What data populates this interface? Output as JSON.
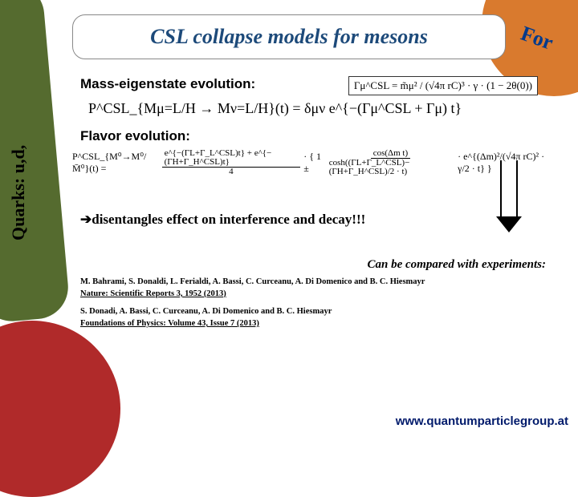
{
  "background": {
    "left_band_color": "#556b2f",
    "left_band_text": "Quarks: u,d,",
    "topright_color": "#d97a2e",
    "topright_text": "For",
    "bottomleft_color": "#b02a2a"
  },
  "title": {
    "text": "CSL collapse models for mesons",
    "color": "#1d4a7a",
    "fontsize": 26
  },
  "sections": {
    "mass_label": "Mass-eigenstate evolution:",
    "flavor_label": "Flavor evolution:",
    "gamma_eq": "Γμ^CSL = m̃μ² / (√4π rC)³ · γ · (1 − 2θ(0))",
    "mass_eq": "P^CSL_{Mμ=L/H → Mν=L/H}(t)  =  δμν  e^{−(Γμ^CSL + Γμ) t}",
    "flavor_eq_left": "P^CSL_{M⁰→M⁰/ M̄⁰}(t) =",
    "flavor_frac_num": "e^{−(ΓL+Γ_L^CSL)t} + e^{−(ΓH+Γ_H^CSL)t}",
    "flavor_frac_den": "4",
    "flavor_eq_mid": " · { 1 ±",
    "flavor_cosh_num": "cos(Δm t)",
    "flavor_cosh_den": "cosh((ΓL+Γ_L^CSL)−(ΓH+Γ_H^CSL)/2 · t)",
    "flavor_eq_tail": " · e^{(Δm)²/(√4π rC)² · γ/2 · t} }"
  },
  "disentangle": {
    "arrow": "➔",
    "text": "disentangles effect on interference and decay!!!"
  },
  "compare": "Can be compared with experiments:",
  "refs": [
    {
      "authors": "M. Bahrami, S. Donaldi, L. Ferialdi, A. Bassi, C. Curceanu, A. Di Domenico and B. C. Hiesmayr",
      "journal": "Nature: Scientific Reports 3, 1952 (2013)"
    },
    {
      "authors": "S. Donadi, A. Bassi, C. Curceanu, A. Di Domenico and B. C. Hiesmayr",
      "journal": "Foundations of Physics: Volume 43, Issue 7 (2013)"
    }
  ],
  "footer_url": "www.quantumparticlegroup.at",
  "styling": {
    "body_font": "Comic Sans MS",
    "title_font": "Georgia italic bold",
    "eq_font": "Times New Roman",
    "arrow_color": "#000000",
    "box_border": "#333333"
  }
}
